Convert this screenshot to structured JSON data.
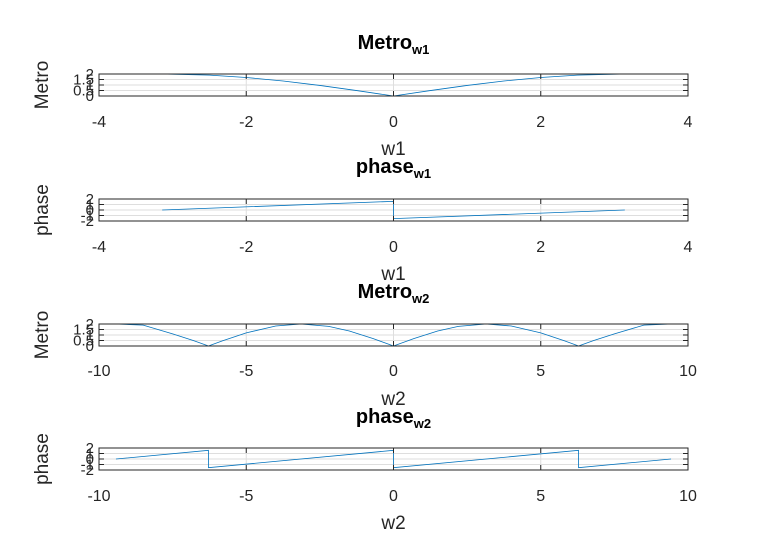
{
  "chart_data": [
    {
      "type": "line",
      "title_main": "Metro",
      "title_sub": "w1",
      "xlabel": "w1",
      "ylabel": "Metro",
      "xlim": [
        -4,
        4
      ],
      "ylim": [
        0,
        2
      ],
      "xticks": [
        -4,
        -2,
        0,
        2,
        4
      ],
      "yticks": [
        0,
        0.5,
        1,
        1.5,
        2
      ],
      "ytick_labels": [
        "0",
        "0.5",
        "1",
        "1.5",
        "2"
      ],
      "grid": true,
      "series": [
        {
          "x": [
            -3.1416,
            -2.5,
            -2.0,
            -1.5,
            -1.0,
            -0.5,
            0.0,
            0.5,
            1.0,
            1.5,
            2.0,
            2.5,
            3.1416
          ],
          "y": [
            2.0,
            1.9,
            1.683,
            1.364,
            0.959,
            0.495,
            0.0,
            0.495,
            0.959,
            1.364,
            1.683,
            1.9,
            2.0
          ]
        }
      ]
    },
    {
      "type": "line",
      "title_main": "phase",
      "title_sub": "w1",
      "xlabel": "w1",
      "ylabel": "phase",
      "xlim": [
        -4,
        4
      ],
      "ylim": [
        -2,
        2
      ],
      "xticks": [
        -4,
        -2,
        0,
        2,
        4
      ],
      "yticks": [
        -2,
        -1,
        0,
        1,
        2
      ],
      "ytick_labels": [
        "-2",
        "-1",
        "0",
        "1",
        "2"
      ],
      "grid": true,
      "series": [
        {
          "x": [
            -3.1416,
            -0.001,
            0.001,
            3.1416
          ],
          "y": [
            0.0,
            1.5703,
            -1.5703,
            0.0
          ]
        }
      ]
    },
    {
      "type": "line",
      "title_main": "Metro",
      "title_sub": "w2",
      "xlabel": "w2",
      "ylabel": "Metro",
      "xlim": [
        -10,
        10
      ],
      "ylim": [
        0,
        2
      ],
      "xticks": [
        -10,
        -5,
        0,
        5,
        10
      ],
      "yticks": [
        0,
        0.5,
        1,
        1.5,
        2
      ],
      "ytick_labels": [
        "0",
        "0.5",
        "1",
        "1.5",
        "2"
      ],
      "grid": true,
      "series": [
        {
          "x": [
            -9.4248,
            -8.5,
            -7.5,
            -6.8,
            -6.2832,
            -5.8,
            -5.0,
            -4.0,
            -3.1416,
            -2.2,
            -1.5,
            -0.7,
            0.0,
            0.7,
            1.5,
            2.2,
            3.1416,
            4.0,
            5.0,
            5.8,
            6.2832,
            6.8,
            7.5,
            8.5,
            9.4248
          ],
          "y": [
            2.0,
            1.895,
            1.106,
            0.503,
            0.0,
            0.475,
            1.197,
            1.819,
            2.0,
            1.782,
            1.364,
            0.686,
            0.0,
            0.686,
            1.364,
            1.782,
            2.0,
            1.819,
            1.197,
            0.475,
            0.0,
            0.503,
            1.106,
            1.895,
            2.0
          ]
        }
      ]
    },
    {
      "type": "line",
      "title_main": "phase",
      "title_sub": "w2",
      "xlabel": "w2",
      "ylabel": "phase",
      "xlim": [
        -10,
        10
      ],
      "ylim": [
        -2,
        2
      ],
      "xticks": [
        -10,
        -5,
        0,
        5,
        10
      ],
      "yticks": [
        -2,
        -1,
        0,
        1,
        2
      ],
      "ytick_labels": [
        "-2",
        "-1",
        "0",
        "1",
        "2"
      ],
      "grid": true,
      "series": [
        {
          "x": [
            -9.4248,
            -6.2842,
            -6.2822,
            -0.001,
            0.001,
            6.2822,
            6.2842,
            9.4248
          ],
          "y": [
            0.0,
            1.5703,
            -1.5703,
            1.5703,
            -1.5703,
            1.5703,
            -1.5703,
            0.0
          ]
        }
      ]
    }
  ]
}
